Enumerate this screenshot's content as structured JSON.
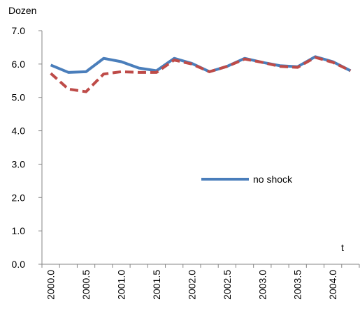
{
  "chart_data": {
    "type": "line",
    "y_label": "Dozen",
    "x_label": "t",
    "categories": [
      "2000.0",
      null,
      "2000.5",
      null,
      "2001.0",
      null,
      "2001.5",
      null,
      "2002.0",
      null,
      "2002.5",
      null,
      "2003.0",
      null,
      "2003.5",
      null,
      "2004.0",
      null
    ],
    "series": [
      {
        "name": "no shock",
        "color": "#4a7ebb",
        "style": "solid",
        "values": [
          5.97,
          5.75,
          5.77,
          6.17,
          6.07,
          5.88,
          5.8,
          6.17,
          6.02,
          5.77,
          5.93,
          6.17,
          6.05,
          5.95,
          5.92,
          6.22,
          6.07,
          5.8
        ]
      },
      {
        "color": "#be4b48",
        "style": "dashed",
        "values": [
          5.72,
          5.25,
          5.17,
          5.7,
          5.77,
          5.75,
          5.75,
          6.12,
          6.0,
          5.77,
          5.93,
          6.15,
          6.05,
          5.93,
          5.9,
          6.2,
          6.05,
          5.8
        ]
      }
    ],
    "ylim": [
      0,
      7
    ],
    "yticks": [
      {
        "value": 0,
        "label": "0.0"
      },
      {
        "value": 1,
        "label": "1.0"
      },
      {
        "value": 2,
        "label": "2.0"
      },
      {
        "value": 3,
        "label": "3.0"
      },
      {
        "value": 4,
        "label": "4.0"
      },
      {
        "value": 5,
        "label": "5.0"
      },
      {
        "value": 6,
        "label": "6.0"
      },
      {
        "value": 7,
        "label": "7.0"
      }
    ],
    "grid": false,
    "legend_position": "center-right"
  }
}
